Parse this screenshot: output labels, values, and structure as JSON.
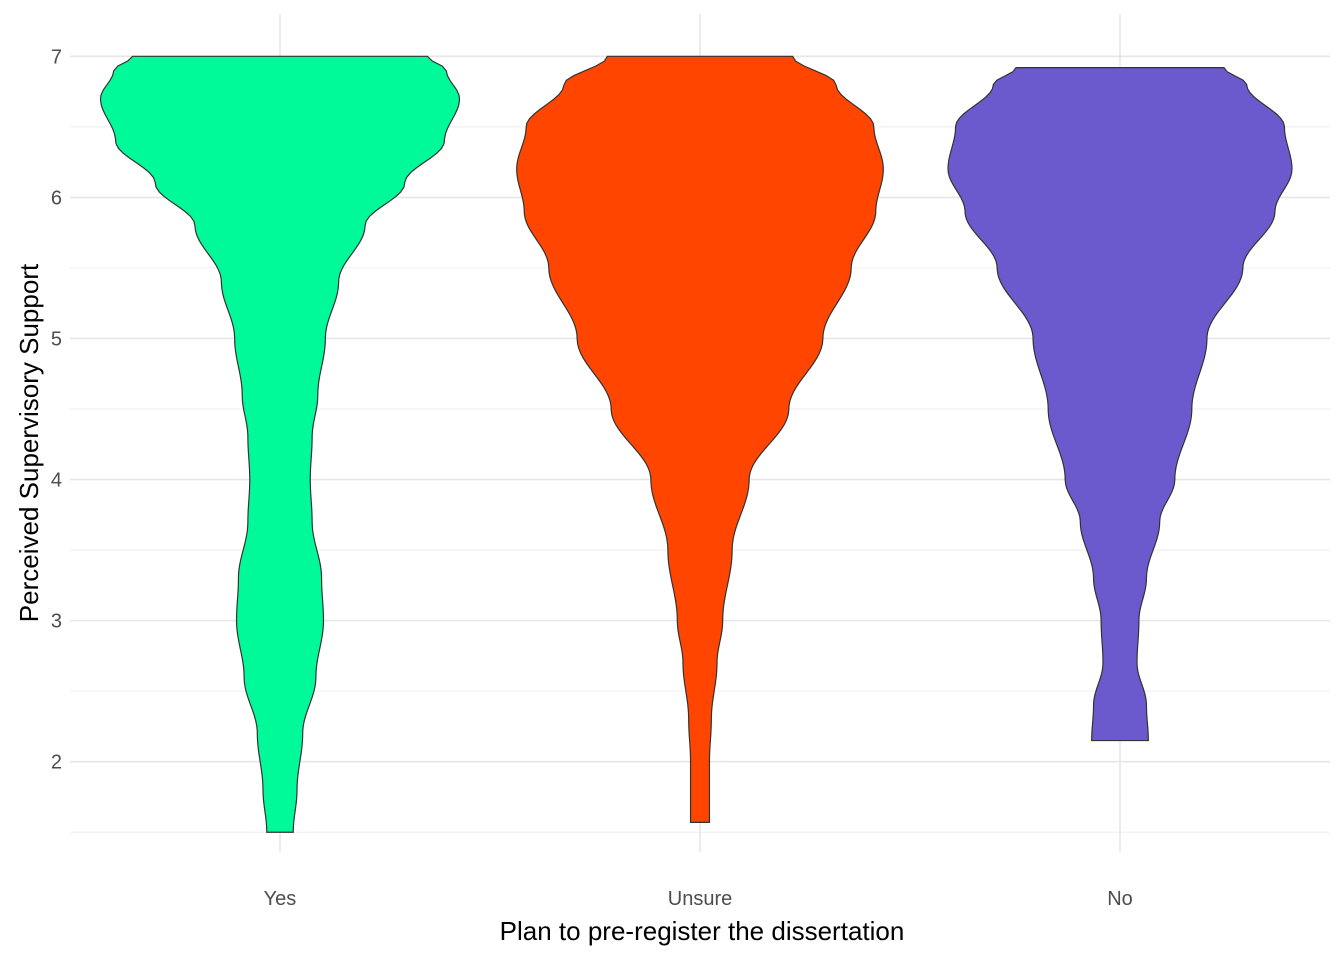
{
  "chart_data": {
    "type": "violin",
    "xlabel": "Plan to pre-register the dissertation",
    "ylabel": "Perceived Supervisory Support",
    "categories": [
      "Yes",
      "Unsure",
      "No"
    ],
    "ylim": [
      1.36,
      7.3
    ],
    "y_ticks": [
      2,
      3,
      4,
      5,
      6,
      7
    ],
    "grid": true,
    "legend": "none",
    "colors": [
      "#00FA9A",
      "#FF4500",
      "#6A5ACD"
    ],
    "outline_color": "#333333",
    "series": [
      {
        "category": "Yes",
        "min": 1.5,
        "max": 7.0,
        "profile": [
          [
            1.5,
            0.07
          ],
          [
            1.8,
            0.09
          ],
          [
            2.2,
            0.12
          ],
          [
            2.6,
            0.19
          ],
          [
            3.0,
            0.23
          ],
          [
            3.3,
            0.22
          ],
          [
            3.7,
            0.17
          ],
          [
            4.0,
            0.16
          ],
          [
            4.3,
            0.17
          ],
          [
            4.6,
            0.2
          ],
          [
            5.0,
            0.24
          ],
          [
            5.4,
            0.31
          ],
          [
            5.8,
            0.45
          ],
          [
            6.1,
            0.66
          ],
          [
            6.4,
            0.87
          ],
          [
            6.7,
            0.95
          ],
          [
            6.9,
            0.88
          ],
          [
            7.0,
            0.78
          ]
        ]
      },
      {
        "category": "Unsure",
        "min": 1.57,
        "max": 7.0,
        "profile": [
          [
            1.57,
            0.05
          ],
          [
            2.0,
            0.05
          ],
          [
            2.3,
            0.06
          ],
          [
            2.7,
            0.09
          ],
          [
            3.0,
            0.12
          ],
          [
            3.5,
            0.17
          ],
          [
            4.0,
            0.26
          ],
          [
            4.5,
            0.47
          ],
          [
            5.0,
            0.65
          ],
          [
            5.5,
            0.8
          ],
          [
            5.9,
            0.93
          ],
          [
            6.2,
            0.97
          ],
          [
            6.5,
            0.92
          ],
          [
            6.8,
            0.72
          ],
          [
            7.0,
            0.49
          ]
        ]
      },
      {
        "category": "No",
        "min": 2.15,
        "max": 6.92,
        "profile": [
          [
            2.15,
            0.15
          ],
          [
            2.4,
            0.14
          ],
          [
            2.7,
            0.09
          ],
          [
            3.0,
            0.1
          ],
          [
            3.3,
            0.14
          ],
          [
            3.7,
            0.21
          ],
          [
            4.0,
            0.29
          ],
          [
            4.5,
            0.38
          ],
          [
            5.0,
            0.46
          ],
          [
            5.5,
            0.65
          ],
          [
            5.9,
            0.82
          ],
          [
            6.2,
            0.91
          ],
          [
            6.5,
            0.87
          ],
          [
            6.8,
            0.67
          ],
          [
            6.92,
            0.55
          ]
        ]
      }
    ]
  }
}
